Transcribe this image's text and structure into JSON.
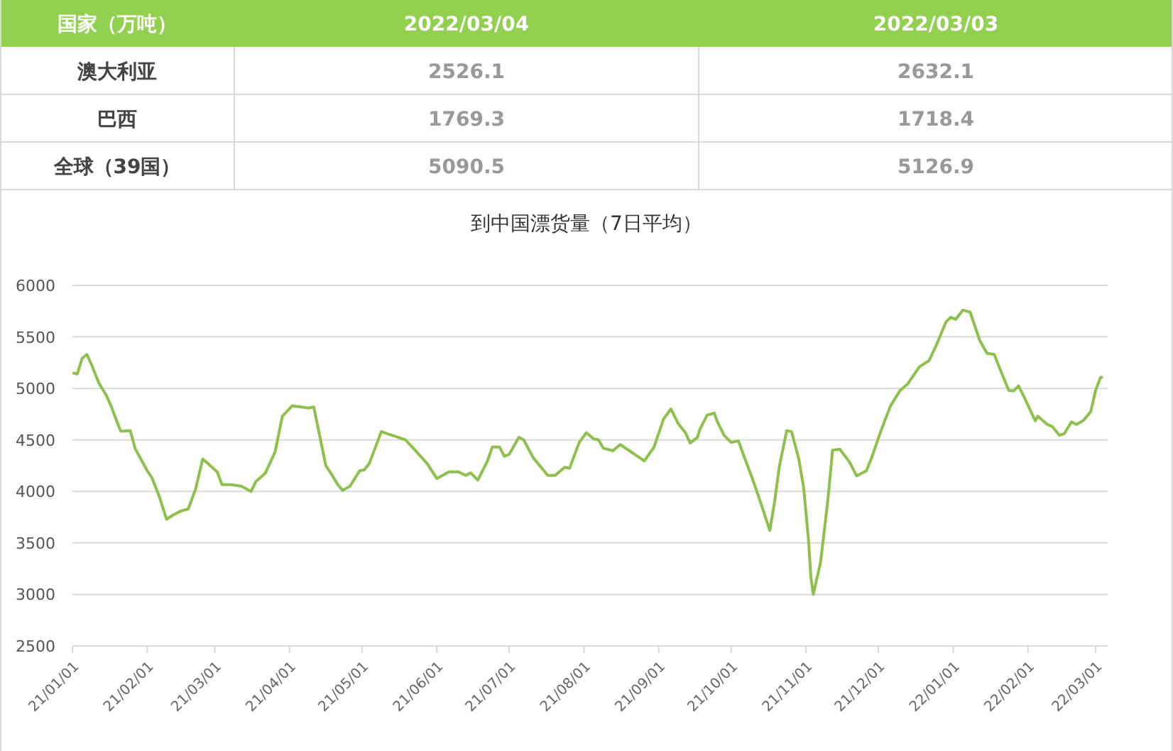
{
  "chart_data": [
    {
      "type": "other",
      "xlabel": "国家（万吨）",
      "categories": [
        "澳大利亚",
        "巴西",
        "全球（39国）"
      ],
      "series": [
        {
          "name": "2022/03/04",
          "values": [
            2526.1,
            1769.3,
            5090.5
          ]
        },
        {
          "name": "2022/03/03",
          "values": [
            2632.1,
            1718.4,
            5126.9
          ]
        }
      ],
      "data_labels": true
    },
    {
      "type": "line",
      "title": "到中国漂货量（7日平均）",
      "grid": "y",
      "marker": "none",
      "line_style": "solid",
      "xlim": [
        "2021-01-01",
        "2022-03-06"
      ],
      "xticks": [
        {
          "value": "2021-01-01",
          "label": "21/01/01"
        },
        {
          "value": "2021-02-01",
          "label": "21/02/01"
        },
        {
          "value": "2021-03-01",
          "label": "21/03/01"
        },
        {
          "value": "2021-04-01",
          "label": "21/04/01"
        },
        {
          "value": "2021-05-01",
          "label": "21/05/01"
        },
        {
          "value": "2021-06-01",
          "label": "21/06/01"
        },
        {
          "value": "2021-07-01",
          "label": "21/07/01"
        },
        {
          "value": "2021-08-01",
          "label": "21/08/01"
        },
        {
          "value": "2021-09-01",
          "label": "21/09/01"
        },
        {
          "value": "2021-10-01",
          "label": "21/10/01"
        },
        {
          "value": "2021-11-01",
          "label": "21/11/01"
        },
        {
          "value": "2021-12-01",
          "label": "21/12/01"
        },
        {
          "value": "2022-01-01",
          "label": "22/01/01"
        },
        {
          "value": "2022-02-01",
          "label": "22/02/01"
        },
        {
          "value": "2022-03-01",
          "label": "22/03/01"
        }
      ],
      "ylim": [
        2500,
        6000
      ],
      "yticks": [
        2500,
        3000,
        3500,
        4000,
        4500,
        5000,
        5500,
        6000
      ],
      "x": [
        "2021-01-01",
        "2021-01-03",
        "2021-01-05",
        "2021-01-07",
        "2021-01-09",
        "2021-01-12",
        "2021-01-15",
        "2021-01-17",
        "2021-01-19",
        "2021-01-21",
        "2021-01-25",
        "2021-01-27",
        "2021-02-01",
        "2021-02-03",
        "2021-02-06",
        "2021-02-09",
        "2021-02-12",
        "2021-02-15",
        "2021-02-18",
        "2021-02-21",
        "2021-02-24",
        "2021-03-02",
        "2021-03-04",
        "2021-03-08",
        "2021-03-12",
        "2021-03-16",
        "2021-03-18",
        "2021-03-22",
        "2021-03-26",
        "2021-03-29",
        "2021-04-02",
        "2021-04-09",
        "2021-04-11",
        "2021-04-16",
        "2021-04-18",
        "2021-04-21",
        "2021-04-23",
        "2021-04-26",
        "2021-04-30",
        "2021-05-02",
        "2021-05-04",
        "2021-05-09",
        "2021-05-16",
        "2021-05-19",
        "2021-05-23",
        "2021-05-28",
        "2021-06-01",
        "2021-06-06",
        "2021-06-10",
        "2021-06-13",
        "2021-06-15",
        "2021-06-18",
        "2021-06-22",
        "2021-06-24",
        "2021-06-27",
        "2021-06-29",
        "2021-07-01",
        "2021-07-05",
        "2021-07-07",
        "2021-07-11",
        "2021-07-17",
        "2021-07-20",
        "2021-07-24",
        "2021-07-26",
        "2021-07-30",
        "2021-08-02",
        "2021-08-05",
        "2021-08-07",
        "2021-08-09",
        "2021-08-13",
        "2021-08-16",
        "2021-08-22",
        "2021-08-26",
        "2021-08-30",
        "2021-09-03",
        "2021-09-06",
        "2021-09-09",
        "2021-09-12",
        "2021-09-14",
        "2021-09-17",
        "2021-09-18",
        "2021-09-21",
        "2021-09-24",
        "2021-09-25",
        "2021-09-28",
        "2021-10-01",
        "2021-10-04",
        "2021-10-06",
        "2021-10-10",
        "2021-10-13",
        "2021-10-17",
        "2021-10-19",
        "2021-10-21",
        "2021-10-24",
        "2021-10-26",
        "2021-10-29",
        "2021-10-31",
        "2021-11-02",
        "2021-11-03",
        "2021-11-04",
        "2021-11-07",
        "2021-11-10",
        "2021-11-12",
        "2021-11-15",
        "2021-11-19",
        "2021-11-22",
        "2021-11-26",
        "2021-11-28",
        "2021-12-02",
        "2021-12-06",
        "2021-12-10",
        "2021-12-13",
        "2021-12-18",
        "2021-12-22",
        "2021-12-25",
        "2021-12-29",
        "2021-12-31",
        "2022-01-02",
        "2022-01-05",
        "2022-01-08",
        "2022-01-12",
        "2022-01-15",
        "2022-01-18",
        "2022-01-20",
        "2022-01-24",
        "2022-01-26",
        "2022-01-28",
        "2022-01-30",
        "2022-02-04",
        "2022-02-05",
        "2022-02-09",
        "2022-02-11",
        "2022-02-14",
        "2022-02-16",
        "2022-02-19",
        "2022-02-21",
        "2022-02-24",
        "2022-02-27",
        "2022-03-01",
        "2022-03-03",
        "2022-03-04"
      ],
      "series": [
        {
          "color": "#8fbf4d",
          "values": [
            5150,
            5140,
            5290,
            5330,
            5225,
            5050,
            4935,
            4830,
            4705,
            4585,
            4590,
            4415,
            4200,
            4130,
            3950,
            3730,
            3775,
            3810,
            3830,
            4020,
            4315,
            4190,
            4065,
            4065,
            4050,
            4000,
            4095,
            4180,
            4385,
            4730,
            4830,
            4810,
            4820,
            4250,
            4180,
            4065,
            4010,
            4050,
            4200,
            4210,
            4270,
            4580,
            4525,
            4500,
            4400,
            4270,
            4125,
            4190,
            4190,
            4155,
            4180,
            4110,
            4295,
            4430,
            4430,
            4340,
            4360,
            4525,
            4500,
            4325,
            4155,
            4155,
            4235,
            4225,
            4475,
            4570,
            4510,
            4500,
            4420,
            4395,
            4455,
            4360,
            4295,
            4430,
            4705,
            4800,
            4660,
            4570,
            4470,
            4525,
            4600,
            4740,
            4760,
            4690,
            4545,
            4475,
            4490,
            4360,
            4110,
            3905,
            3620,
            3905,
            4250,
            4590,
            4580,
            4315,
            4040,
            3535,
            3170,
            3000,
            3310,
            3905,
            4400,
            4410,
            4285,
            4150,
            4200,
            4315,
            4585,
            4830,
            4980,
            5040,
            5210,
            5270,
            5420,
            5645,
            5690,
            5670,
            5760,
            5740,
            5465,
            5340,
            5330,
            5210,
            4980,
            4975,
            5025,
            4935,
            4685,
            4730,
            4650,
            4630,
            4545,
            4560,
            4675,
            4650,
            4690,
            4775,
            4980,
            5105,
            5110
          ]
        }
      ]
    }
  ]
}
